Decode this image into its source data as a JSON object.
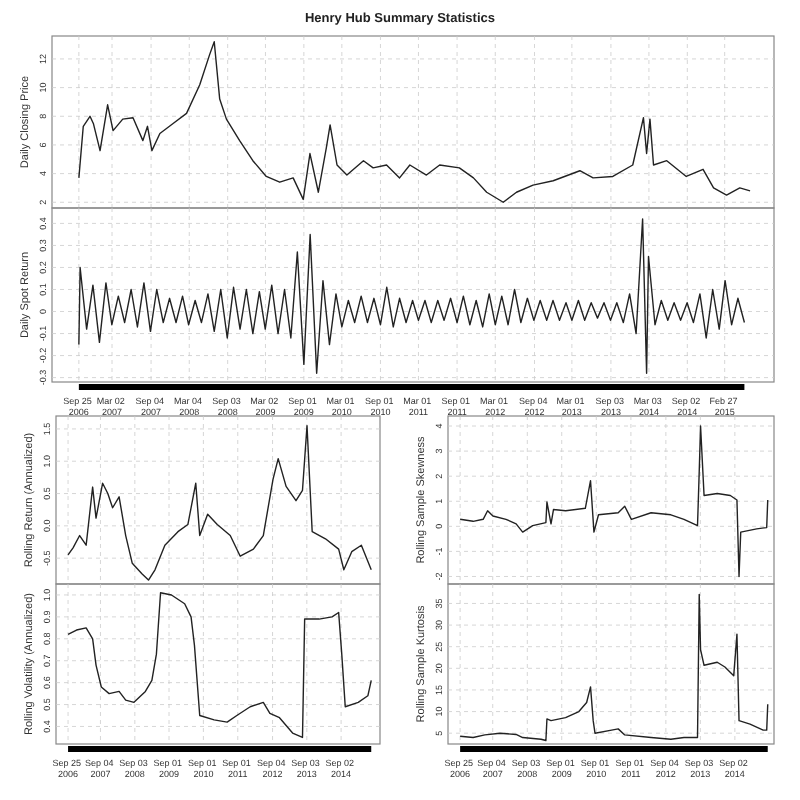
{
  "chart_data": [
    {
      "type": "line",
      "title": "Henry Hub Summary Statistics",
      "ylabel": "Daily Closing Price",
      "grid": true,
      "tick_labels": "y",
      "xlim": [
        "2006-05-20",
        "2015-10-20"
      ],
      "xticks": [
        {
          "value": "2006-09-25",
          "label": null
        },
        {
          "value": "2007-03-02",
          "label": null
        },
        {
          "value": "2007-09-04",
          "label": null
        },
        {
          "value": "2008-03-04",
          "label": null
        },
        {
          "value": "2008-09-03",
          "label": null
        },
        {
          "value": "2009-03-02",
          "label": null
        },
        {
          "value": "2009-09-01",
          "label": null
        },
        {
          "value": "2010-03-01",
          "label": null
        },
        {
          "value": "2010-09-01",
          "label": null
        },
        {
          "value": "2011-03-01",
          "label": null
        },
        {
          "value": "2011-09-01",
          "label": null
        },
        {
          "value": "2012-03-01",
          "label": null
        },
        {
          "value": "2012-09-04",
          "label": null
        },
        {
          "value": "2013-03-01",
          "label": null
        },
        {
          "value": "2013-09-03",
          "label": null
        },
        {
          "value": "2014-03-03",
          "label": null
        },
        {
          "value": "2014-09-02",
          "label": null
        },
        {
          "value": "2015-02-27",
          "label": null
        }
      ],
      "ylim": [
        1.6,
        13.6
      ],
      "yticks": [
        2,
        4,
        6,
        8,
        10,
        12
      ],
      "series": [
        {
          "color": "#222222",
          "x": [
            "2006-09-25",
            "2006-10-16",
            "2006-11-17",
            "2006-12-03",
            "2007-01-04",
            "2007-02-09",
            "2007-03-07",
            "2007-04-22",
            "2007-06-10",
            "2007-07-27",
            "2007-08-18",
            "2007-09-08",
            "2007-10-16",
            "2007-12-18",
            "2008-02-20",
            "2008-04-23",
            "2008-06-09",
            "2008-07-01",
            "2008-07-27",
            "2008-08-28",
            "2008-10-30",
            "2009-01-01",
            "2009-03-06",
            "2009-05-09",
            "2009-07-12",
            "2009-08-29",
            "2009-09-30",
            "2009-11-09",
            "2009-12-17",
            "2010-01-04",
            "2010-02-06",
            "2010-03-25",
            "2010-06-12",
            "2010-07-28",
            "2010-09-30",
            "2010-12-01",
            "2011-01-19",
            "2011-04-08",
            "2011-06-10",
            "2011-09-12",
            "2011-11-18",
            "2012-01-20",
            "2012-04-08",
            "2012-06-10",
            "2012-08-28",
            "2012-12-02",
            "2013-04-08",
            "2013-06-10",
            "2013-09-12",
            "2013-12-16",
            "2014-02-05",
            "2014-02-20",
            "2014-03-08",
            "2014-03-25",
            "2014-05-27",
            "2014-08-28",
            "2014-11-16",
            "2015-01-05",
            "2015-03-08",
            "2015-05-10",
            "2015-06-28"
          ],
          "values": [
            3.7,
            7.3,
            8.0,
            7.5,
            5.6,
            8.8,
            7.0,
            7.8,
            7.9,
            6.3,
            7.3,
            5.6,
            6.8,
            7.5,
            8.2,
            10.2,
            12.3,
            13.2,
            9.2,
            7.8,
            6.3,
            4.9,
            3.8,
            3.4,
            3.7,
            2.2,
            5.4,
            2.7,
            5.8,
            7.4,
            4.6,
            3.9,
            4.9,
            4.4,
            4.6,
            3.7,
            4.6,
            3.9,
            4.6,
            4.4,
            3.7,
            2.7,
            2.0,
            2.7,
            3.2,
            3.5,
            4.2,
            3.7,
            3.8,
            4.6,
            7.9,
            5.4,
            7.8,
            4.6,
            4.9,
            3.8,
            4.3,
            3.0,
            2.5,
            3.0,
            2.8
          ]
        }
      ]
    },
    {
      "type": "line",
      "ylabel": "Daily Spot Return",
      "grid": true,
      "xlim": [
        "2006-05-20",
        "2015-10-20"
      ],
      "xticks": [
        {
          "value": "2006-09-25",
          "label": "Sep 25 2006"
        },
        {
          "value": "2007-03-02",
          "label": "Mar 02 2007"
        },
        {
          "value": "2007-09-04",
          "label": "Sep 04 2007"
        },
        {
          "value": "2008-03-04",
          "label": "Mar 04 2008"
        },
        {
          "value": "2008-09-03",
          "label": "Sep 03 2008"
        },
        {
          "value": "2009-03-02",
          "label": "Mar 02 2009"
        },
        {
          "value": "2009-09-01",
          "label": "Sep 01 2009"
        },
        {
          "value": "2010-03-01",
          "label": "Mar 01 2010"
        },
        {
          "value": "2010-09-01",
          "label": "Sep 01 2010"
        },
        {
          "value": "2011-03-01",
          "label": "Mar 01 2011"
        },
        {
          "value": "2011-09-01",
          "label": "Sep 01 2011"
        },
        {
          "value": "2012-03-01",
          "label": "Mar 01 2012"
        },
        {
          "value": "2012-09-04",
          "label": "Sep 04 2012"
        },
        {
          "value": "2013-03-01",
          "label": "Mar 01 2013"
        },
        {
          "value": "2013-09-03",
          "label": "Sep 03 2013"
        },
        {
          "value": "2014-03-03",
          "label": "Mar 03 2014"
        },
        {
          "value": "2014-09-02",
          "label": "Sep 02 2014"
        },
        {
          "value": "2015-02-27",
          "label": "Feb 27 2015"
        }
      ],
      "ylim": [
        -0.32,
        0.47
      ],
      "yticks": [
        -0.3,
        -0.2,
        -0.1,
        0.0,
        0.1,
        0.2,
        0.3,
        0.4
      ],
      "series": [
        {
          "color": "#222222",
          "x": [
            "2006-09-25",
            "2006-10",
            "2006-11",
            "2006-12",
            "2007-01",
            "2007-02",
            "2007-03",
            "2007-04",
            "2007-05",
            "2007-06",
            "2007-07",
            "2007-08",
            "2007-09",
            "2007-10",
            "2007-11",
            "2007-12",
            "2008-01",
            "2008-02",
            "2008-03",
            "2008-04",
            "2008-05",
            "2008-06",
            "2008-07",
            "2008-08",
            "2008-09",
            "2008-10",
            "2008-11",
            "2008-12",
            "2009-01",
            "2009-02",
            "2009-03",
            "2009-04",
            "2009-05",
            "2009-06",
            "2009-07",
            "2009-08",
            "2009-09",
            "2009-10",
            "2009-11",
            "2009-12",
            "2010-01",
            "2010-02",
            "2010-03",
            "2010-04",
            "2010-05",
            "2010-06",
            "2010-07",
            "2010-08",
            "2010-09",
            "2010-10",
            "2010-11",
            "2010-12",
            "2011-01",
            "2011-02",
            "2011-03",
            "2011-04",
            "2011-05",
            "2011-06",
            "2011-07",
            "2011-08",
            "2011-09",
            "2011-10",
            "2011-11",
            "2011-12",
            "2012-01",
            "2012-02",
            "2012-03",
            "2012-04",
            "2012-05",
            "2012-06",
            "2012-07",
            "2012-08",
            "2012-09",
            "2012-10",
            "2012-11",
            "2012-12",
            "2013-01",
            "2013-02",
            "2013-03",
            "2013-04",
            "2013-05",
            "2013-06",
            "2013-07",
            "2013-08",
            "2013-09",
            "2013-10",
            "2013-11",
            "2013-12",
            "2014-01",
            "2014-02",
            "2014-02-20",
            "2014-03",
            "2014-04",
            "2014-05",
            "2014-06",
            "2014-07",
            "2014-08",
            "2014-09",
            "2014-10",
            "2014-11",
            "2014-12",
            "2015-01",
            "2015-02",
            "2015-03",
            "2015-04",
            "2015-05",
            "2015-06"
          ],
          "values": [
            -0.15,
            0.2,
            -0.08,
            0.12,
            -0.14,
            0.13,
            -0.06,
            0.07,
            -0.05,
            0.1,
            -0.07,
            0.13,
            -0.09,
            0.1,
            -0.05,
            0.06,
            -0.05,
            0.07,
            -0.06,
            0.05,
            -0.05,
            0.08,
            -0.09,
            0.1,
            -0.12,
            0.11,
            -0.08,
            0.1,
            -0.1,
            0.09,
            -0.08,
            0.12,
            -0.1,
            0.1,
            -0.12,
            0.27,
            -0.24,
            0.35,
            -0.28,
            0.14,
            -0.15,
            0.08,
            -0.07,
            0.05,
            -0.05,
            0.07,
            -0.05,
            0.06,
            -0.06,
            0.11,
            -0.07,
            0.06,
            -0.05,
            0.05,
            -0.04,
            0.05,
            -0.05,
            0.05,
            -0.04,
            0.06,
            -0.05,
            0.07,
            -0.06,
            0.05,
            -0.07,
            0.08,
            -0.06,
            0.07,
            -0.06,
            0.1,
            -0.05,
            0.06,
            -0.04,
            0.05,
            -0.04,
            0.05,
            -0.04,
            0.04,
            -0.04,
            0.05,
            -0.04,
            0.04,
            -0.03,
            0.04,
            -0.04,
            0.04,
            -0.05,
            0.08,
            -0.1,
            0.42,
            -0.28,
            0.25,
            -0.06,
            0.05,
            -0.04,
            0.04,
            -0.04,
            0.04,
            -0.05,
            0.08,
            -0.12,
            0.1,
            -0.08,
            0.14,
            -0.06,
            0.06,
            -0.05
          ]
        }
      ]
    },
    {
      "type": "line",
      "ylabel": "Rolling Return (Annualized)",
      "grid": true,
      "tick_labels": "y",
      "xlim": [
        "2006-05-20",
        "2015-10-20"
      ],
      "xticks": [
        {
          "value": "2006-09-25",
          "label": null
        },
        {
          "value": "2007-09-04",
          "label": null
        },
        {
          "value": "2008-09-03",
          "label": null
        },
        {
          "value": "2009-09-01",
          "label": null
        },
        {
          "value": "2010-09-01",
          "label": null
        },
        {
          "value": "2011-09-01",
          "label": null
        },
        {
          "value": "2012-09-04",
          "label": null
        },
        {
          "value": "2013-09-03",
          "label": null
        },
        {
          "value": "2014-09-02",
          "label": null
        }
      ],
      "ylim": [
        -0.9,
        1.7
      ],
      "yticks": [
        {
          "value": -0.5,
          "label": "-0.5"
        },
        {
          "value": 0,
          "label": "0.0"
        },
        {
          "value": 0.5,
          "label": "0.5"
        },
        {
          "value": 1,
          "label": "1.0"
        },
        {
          "value": 1.5,
          "label": "1.5"
        }
      ],
      "series": [
        {
          "color": "#222222",
          "x": [
            "2006-09-25",
            "2006-11-17",
            "2007-01-26",
            "2007-04-05",
            "2007-06-13",
            "2007-07-19",
            "2007-09-27",
            "2007-11-21",
            "2008-01-11",
            "2008-03-20",
            "2008-05-29",
            "2008-08-07",
            "2008-11-17",
            "2009-01-26",
            "2009-04-05",
            "2009-07-19",
            "2009-12-05",
            "2010-03-20",
            "2010-06-12",
            "2010-07-24",
            "2010-10-16",
            "2011-01-26",
            "2011-06-13",
            "2011-09-27",
            "2012-02-14",
            "2012-05-29",
            "2012-09-09",
            "2012-11-03",
            "2013-01-26",
            "2013-05-11",
            "2013-07-19",
            "2013-09-05",
            "2013-10-30",
            "2014-03-20",
            "2014-08-07",
            "2014-10-01",
            "2014-12-24",
            "2015-04-05",
            "2015-07-19"
          ],
          "values": [
            -0.45,
            -0.34,
            -0.15,
            -0.3,
            0.6,
            0.12,
            0.66,
            0.5,
            0.28,
            0.45,
            -0.15,
            -0.58,
            -0.74,
            -0.84,
            -0.68,
            -0.3,
            -0.09,
            0.02,
            0.66,
            -0.15,
            0.18,
            0.02,
            -0.15,
            -0.47,
            -0.36,
            -0.15,
            0.72,
            1.04,
            0.61,
            0.39,
            0.55,
            1.55,
            -0.09,
            -0.2,
            -0.36,
            -0.68,
            -0.4,
            -0.3,
            -0.68
          ]
        }
      ]
    },
    {
      "type": "line",
      "ylabel": "Rolling Volatility (Annualized)",
      "grid": true,
      "xlim": [
        "2006-05-20",
        "2015-10-20"
      ],
      "xticks": [
        {
          "value": "2006-09-25",
          "label": "Sep 25 2006"
        },
        {
          "value": "2007-09-04",
          "label": "Sep 04 2007"
        },
        {
          "value": "2008-09-03",
          "label": "Sep 03 2008"
        },
        {
          "value": "2009-09-01",
          "label": "Sep 01 2009"
        },
        {
          "value": "2010-09-01",
          "label": "Sep 01 2010"
        },
        {
          "value": "2011-09-01",
          "label": "Sep 01 2011"
        },
        {
          "value": "2012-09-04",
          "label": "Sep 04 2012"
        },
        {
          "value": "2013-09-03",
          "label": "Sep 03 2013"
        },
        {
          "value": "2014-09-02",
          "label": "Sep 02 2014"
        }
      ],
      "ylim": [
        0.32,
        1.05
      ],
      "yticks": [
        0.4,
        0.5,
        0.6,
        0.7,
        0.8,
        0.9,
        {
          "value": 1,
          "label": "1.0"
        }
      ],
      "series": [
        {
          "color": "#222222",
          "x": [
            "2006-09-25",
            "2006-12-24",
            "2007-04-05",
            "2007-06-13",
            "2007-07-19",
            "2007-09-13",
            "2007-12-05",
            "2008-03-20",
            "2008-05-29",
            "2008-08-25",
            "2008-12-24",
            "2009-03-03",
            "2009-04-20",
            "2009-06-03",
            "2009-09-27",
            "2010-02-14",
            "2010-04-23",
            "2010-05-29",
            "2010-07-24",
            "2010-12-24",
            "2011-05-11",
            "2011-08-22",
            "2012-01-11",
            "2012-05-29",
            "2012-08-07",
            "2012-11-17",
            "2013-04-05",
            "2013-07-19",
            "2013-08-11",
            "2014-01-11",
            "2014-05-29",
            "2014-08-07",
            "2014-09-09",
            "2014-10-16",
            "2015-03-03",
            "2015-06-13",
            "2015-07-19"
          ],
          "values": [
            0.82,
            0.84,
            0.85,
            0.8,
            0.68,
            0.58,
            0.55,
            0.56,
            0.52,
            0.51,
            0.56,
            0.61,
            0.73,
            1.01,
            1.0,
            0.96,
            0.9,
            0.77,
            0.45,
            0.43,
            0.42,
            0.45,
            0.49,
            0.51,
            0.46,
            0.44,
            0.37,
            0.35,
            0.89,
            0.89,
            0.9,
            0.92,
            0.73,
            0.49,
            0.51,
            0.54,
            0.61
          ]
        }
      ]
    },
    {
      "type": "line",
      "ylabel": "Rolling Sample Skewness",
      "grid": true,
      "tick_labels": "y",
      "xlim": [
        "2006-05-20",
        "2015-10-20"
      ],
      "xticks": [
        {
          "value": "2006-09-25",
          "label": null
        },
        {
          "value": "2007-09-04",
          "label": null
        },
        {
          "value": "2008-09-03",
          "label": null
        },
        {
          "value": "2009-09-01",
          "label": null
        },
        {
          "value": "2010-09-01",
          "label": null
        },
        {
          "value": "2011-09-01",
          "label": null
        },
        {
          "value": "2012-09-04",
          "label": null
        },
        {
          "value": "2013-09-03",
          "label": null
        },
        {
          "value": "2014-09-02",
          "label": null
        }
      ],
      "ylim": [
        -2.3,
        4.4
      ],
      "yticks": [
        -2,
        -1,
        0,
        1,
        2,
        3,
        4
      ],
      "series": [
        {
          "color": "#222222",
          "x": [
            "2006-09-25",
            "2007-02-09",
            "2007-05-26",
            "2007-07-12",
            "2007-09-06",
            "2008-01-22",
            "2008-05-08",
            "2008-07-16",
            "2008-10-30",
            "2009-03-18",
            "2009-03-29",
            "2009-05-11",
            "2009-06-06",
            "2009-10-12",
            "2010-05-08",
            "2010-07-02",
            "2010-08-07",
            "2010-09-24",
            "2011-04-20",
            "2011-06-28",
            "2011-09-06",
            "2012-04-01",
            "2012-10-27",
            "2013-03-14",
            "2013-08-04",
            "2013-08-22",
            "2013-09-05",
            "2013-10-12",
            "2014-02-28",
            "2014-07-16",
            "2014-09-24",
            "2014-10-16",
            "2014-11-03",
            "2015-04-20",
            "2015-08-04",
            "2015-08-15"
          ],
          "values": [
            0.28,
            0.2,
            0.28,
            0.62,
            0.41,
            0.28,
            0.1,
            -0.23,
            0.03,
            0.15,
            0.97,
            0.1,
            0.67,
            0.62,
            0.72,
            1.82,
            -0.23,
            0.46,
            0.54,
            0.8,
            0.28,
            0.54,
            0.46,
            0.28,
            0.03,
            2.2,
            4.0,
            1.23,
            1.31,
            1.23,
            1.05,
            -2.0,
            -0.23,
            -0.1,
            -0.05,
            1.05
          ]
        }
      ]
    },
    {
      "type": "line",
      "ylabel": "Rolling Sample Kurtosis",
      "grid": true,
      "xlim": [
        "2006-05-20",
        "2015-10-20"
      ],
      "xticks": [
        {
          "value": "2006-09-25",
          "label": "Sep 25 2006"
        },
        {
          "value": "2007-09-04",
          "label": "Sep 04 2007"
        },
        {
          "value": "2008-09-03",
          "label": "Sep 03 2008"
        },
        {
          "value": "2009-09-01",
          "label": "Sep 01 2009"
        },
        {
          "value": "2010-09-01",
          "label": "Sep 01 2010"
        },
        {
          "value": "2011-09-01",
          "label": "Sep 01 2011"
        },
        {
          "value": "2012-09-04",
          "label": "Sep 04 2012"
        },
        {
          "value": "2013-09-03",
          "label": "Sep 03 2013"
        },
        {
          "value": "2014-09-02",
          "label": "Sep 02 2014"
        }
      ],
      "ylim": [
        2.5,
        39.5
      ],
      "yticks": [
        5,
        10,
        15,
        20,
        25,
        30,
        35
      ],
      "series": [
        {
          "color": "#222222",
          "x": [
            "2006-09-25",
            "2007-02-09",
            "2007-06-13",
            "2007-11-21",
            "2008-05-08",
            "2008-07-16",
            "2009-01-26",
            "2009-03-18",
            "2009-03-29",
            "2009-05-11",
            "2009-10-12",
            "2010-03-01",
            "2010-05-22",
            "2010-07-02",
            "2010-07-30",
            "2010-08-18",
            "2011-02-09",
            "2011-04-20",
            "2011-06-28",
            "2012-04-01",
            "2012-10-27",
            "2013-03-14",
            "2013-08-04",
            "2013-08-22",
            "2013-09-05",
            "2013-10-12",
            "2014-02-28",
            "2014-05-20",
            "2014-08-21",
            "2014-09-24",
            "2014-10-16",
            "2015-02-09",
            "2015-06-28",
            "2015-08-04",
            "2015-08-15"
          ],
          "values": [
            4.3,
            4.0,
            4.6,
            5.0,
            4.7,
            4.0,
            3.6,
            3.3,
            8.3,
            7.9,
            8.6,
            10.0,
            12.1,
            15.7,
            7.9,
            5.0,
            5.7,
            6.0,
            4.6,
            4.0,
            3.6,
            4.0,
            4.0,
            37.1,
            24.3,
            20.7,
            21.4,
            20.3,
            18.3,
            27.9,
            7.9,
            7.1,
            5.7,
            5.7,
            11.7
          ]
        }
      ]
    }
  ]
}
